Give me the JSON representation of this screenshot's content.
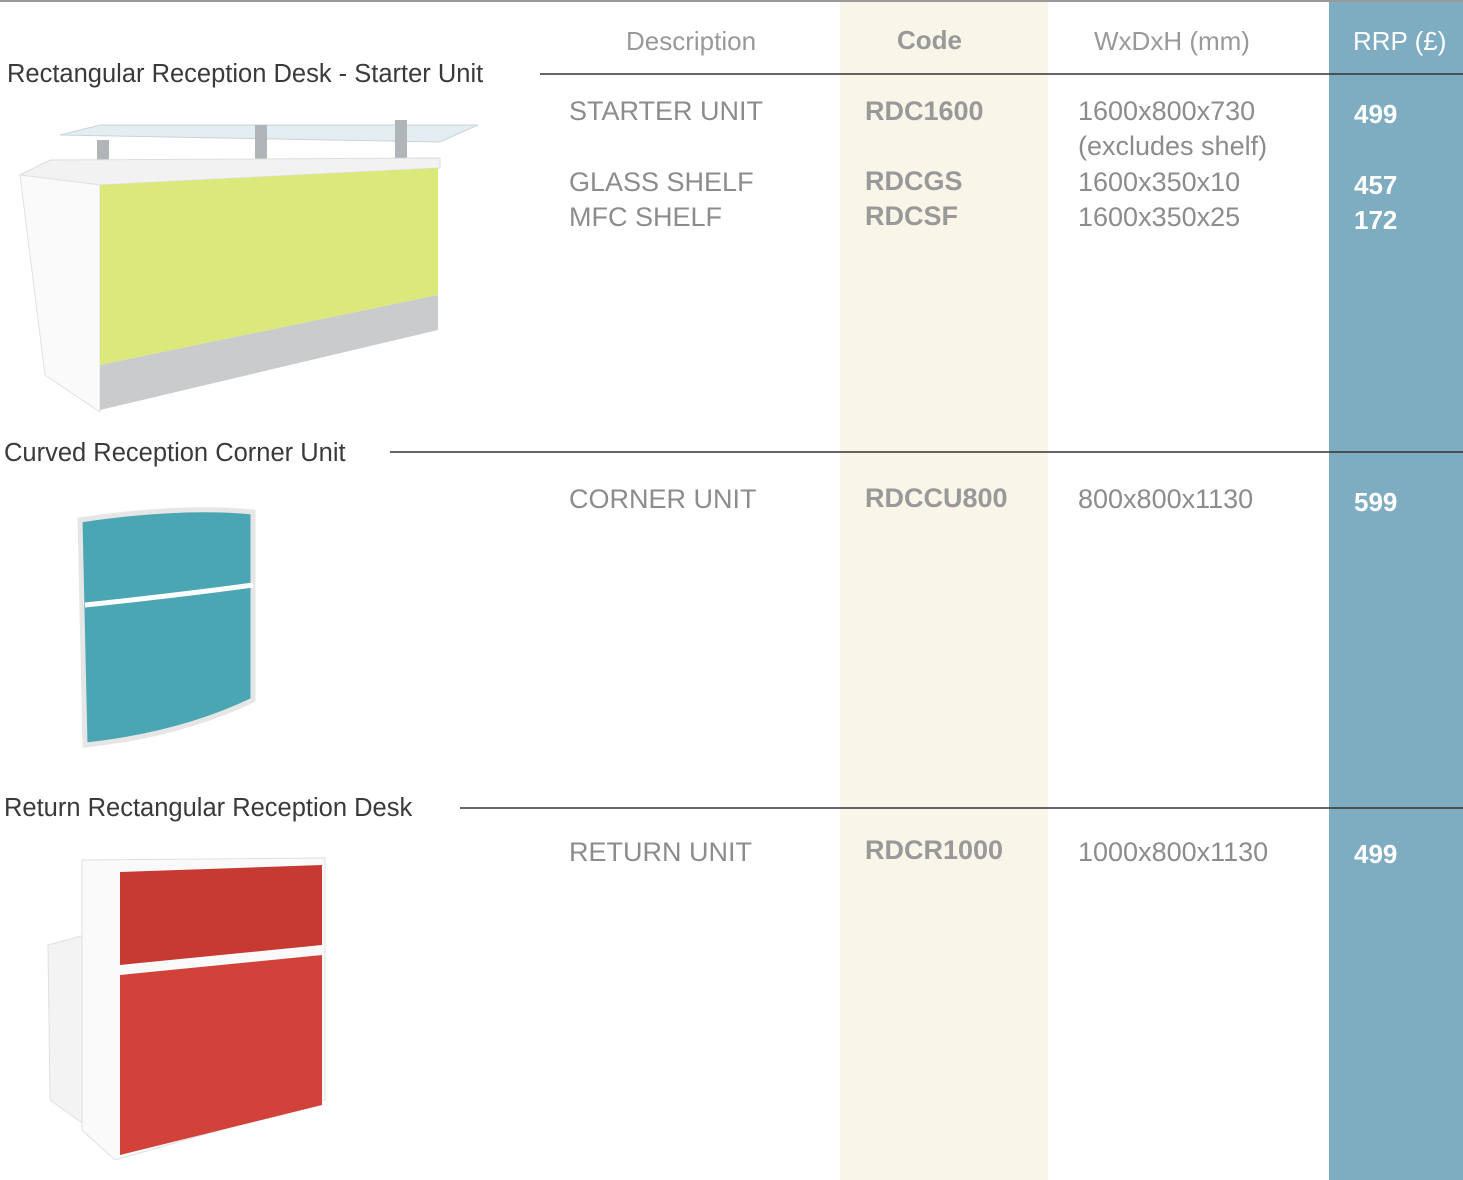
{
  "header": {
    "description": "Description",
    "code": "Code",
    "dimensions": "WxDxH (mm)",
    "price": "RRP (£)"
  },
  "sections": [
    {
      "title": "Rectangular Reception Desk - Starter Unit",
      "rows": [
        {
          "description": "STARTER UNIT",
          "code": "RDC1600",
          "dimensions": "1600x800x730",
          "note": "(excludes shelf)",
          "price": 499
        },
        {
          "description": "GLASS SHELF",
          "code": "RDCGS",
          "dimensions": "1600x350x10",
          "price": 457
        },
        {
          "description": "MFC SHELF",
          "code": "RDCSF",
          "dimensions": "1600x350x25",
          "price": 172
        }
      ]
    },
    {
      "title": "Curved Reception Corner Unit",
      "rows": [
        {
          "description": "CORNER UNIT",
          "code": "RDCCU800",
          "dimensions": "800x800x1130",
          "price": 599
        }
      ]
    },
    {
      "title": "Return Rectangular Reception Desk",
      "rows": [
        {
          "description": "RETURN UNIT",
          "code": "RDCR1000",
          "dimensions": "1000x800x1130",
          "price": 499
        }
      ]
    }
  ]
}
